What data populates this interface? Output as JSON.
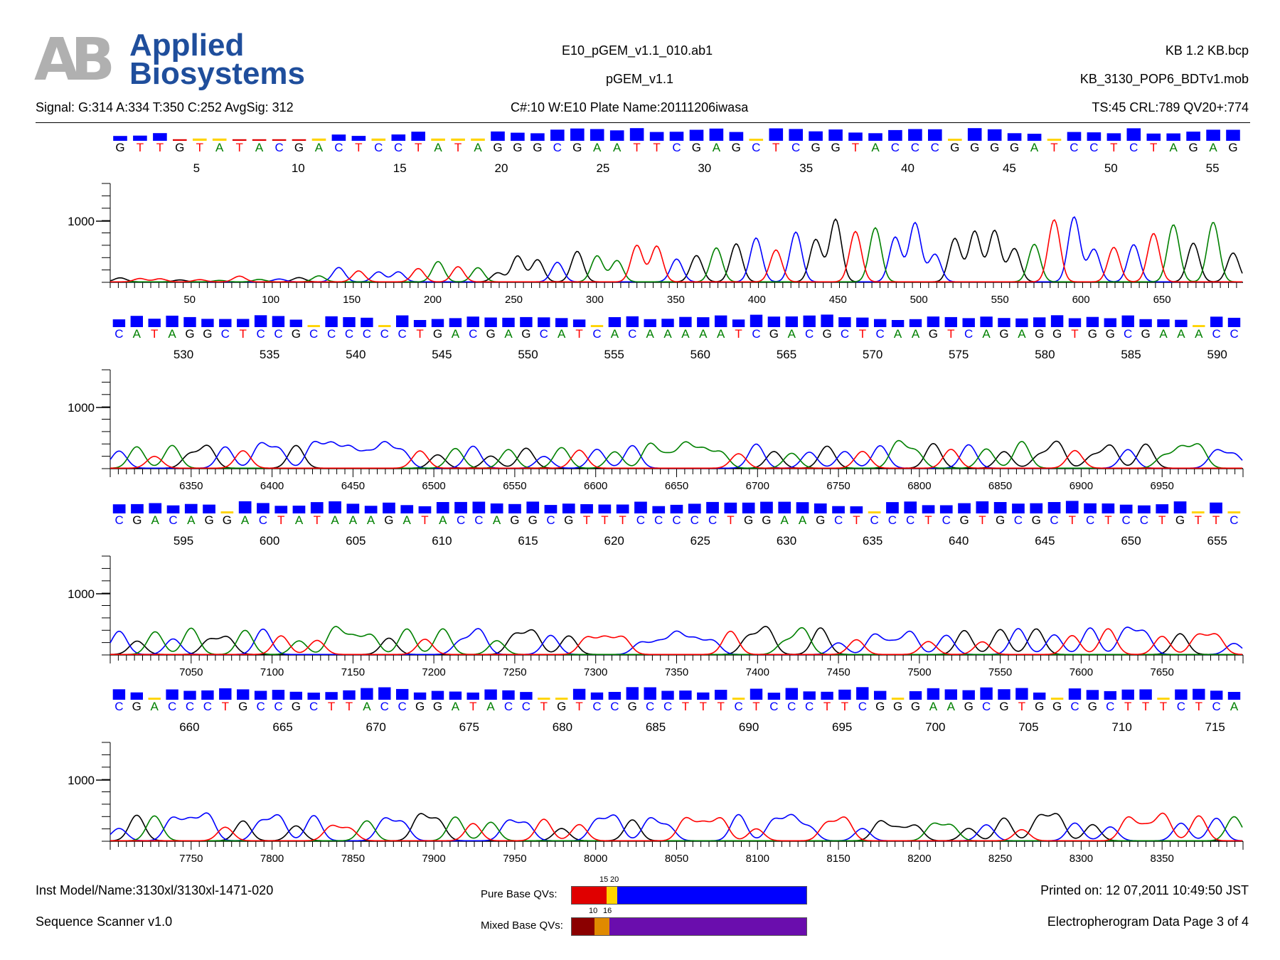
{
  "header": {
    "logo_mark": "AB",
    "logo_line1": "Applied",
    "logo_line2": "Biosystems",
    "file_name": "E10_pGEM_v1.1_010.ab1",
    "sample_name": "pGEM_v1.1",
    "basecaller": "KB 1.2   KB.bcp",
    "mobility": "KB_3130_POP6_BDTv1.mob",
    "signal": "Signal: G:314 A:334 T:350 C:252 AvgSig: 312",
    "plate": "C#:10  W:E10  Plate Name:20111206iwasa",
    "stats": "TS:45  CRL:789  QV20+:774"
  },
  "footer": {
    "instrument": "Inst Model/Name:3130xl/3130xl-1471-020",
    "software": "Sequence Scanner v1.0",
    "printed": "Printed on: 12 07,2011 10:49:50 JST",
    "page": "Electropherogram Data Page 3 of 4",
    "pure_label": "Pure Base QVs:",
    "pure_ticks": [
      "15",
      "20"
    ],
    "mixed_label": "Mixed Base QVs:",
    "mixed_ticks": [
      "10",
      "16"
    ]
  },
  "colors": {
    "A": "#008000",
    "C": "#0000ff",
    "G": "#000000",
    "T": "#ff0000",
    "qv_high": "#0000ff",
    "qv_mid": "#ffd400",
    "qv_low": "#e00000",
    "mixed_high": "#6a0dad",
    "mixed_mid": "#e08a00",
    "mixed_low": "#8b0000"
  },
  "chart_data": [
    {
      "type": "line",
      "panel": 1,
      "sequence": "GTTGTATACGACTCCTATAGGGCGAATTCGAGCTCGGTACCCGGGGATCCTCTAGAG",
      "base_numbers": [
        "5",
        "10",
        "15",
        "20",
        "25",
        "30",
        "35",
        "40",
        "45",
        "50",
        "55"
      ],
      "scan_ticks": [
        "50",
        "100",
        "150",
        "200",
        "250",
        "300",
        "350",
        "400",
        "450",
        "500",
        "550",
        "600",
        "650"
      ],
      "scan_range": [
        1,
        700
      ],
      "y_label": "1000",
      "ylim": [
        0,
        1100
      ]
    },
    {
      "type": "line",
      "panel": 2,
      "sequence": "CATAGGCTCCGCCCCCCTGACGAGCATCACAAAAATCGACGCTCAAGTCAGAGGTGGCGAAACC",
      "base_numbers": [
        "530",
        "535",
        "540",
        "545",
        "550",
        "555",
        "560",
        "565",
        "570",
        "575",
        "580",
        "585",
        "590"
      ],
      "scan_ticks": [
        "6350",
        "6400",
        "6450",
        "6500",
        "6550",
        "6600",
        "6650",
        "6700",
        "6750",
        "6800",
        "6850",
        "6900",
        "6950"
      ],
      "scan_range": [
        6300,
        7000
      ],
      "y_label": "1000",
      "ylim": [
        0,
        1100
      ]
    },
    {
      "type": "line",
      "panel": 3,
      "sequence": "CGACAGGACTATAAAGATACCAGGCGTTTCCCCCTGGAAGCTCCCTCGTGCGCTCTCCTGTTC",
      "base_numbers": [
        "595",
        "600",
        "605",
        "610",
        "615",
        "620",
        "625",
        "630",
        "635",
        "640",
        "645",
        "650",
        "655"
      ],
      "scan_ticks": [
        "7050",
        "7100",
        "7150",
        "7200",
        "7250",
        "7300",
        "7350",
        "7400",
        "7450",
        "7500",
        "7550",
        "7600",
        "7650"
      ],
      "scan_range": [
        7000,
        7700
      ],
      "y_label": "1000",
      "ylim": [
        0,
        1100
      ]
    },
    {
      "type": "line",
      "panel": 4,
      "sequence": "CGACCCTGCCGCTTACCGGATACCTGTCCGCCTTTCTCCCTTCGGGAAGCGTGGCGCTTTCTCA",
      "base_numbers": [
        "660",
        "665",
        "670",
        "675",
        "680",
        "685",
        "690",
        "695",
        "700",
        "705",
        "710",
        "715"
      ],
      "scan_ticks": [
        "7750",
        "7800",
        "7850",
        "7900",
        "7950",
        "8000",
        "8050",
        "8100",
        "8150",
        "8200",
        "8250",
        "8300",
        "8350"
      ],
      "scan_range": [
        7700,
        8400
      ],
      "y_label": "1000",
      "ylim": [
        0,
        1100
      ]
    }
  ]
}
